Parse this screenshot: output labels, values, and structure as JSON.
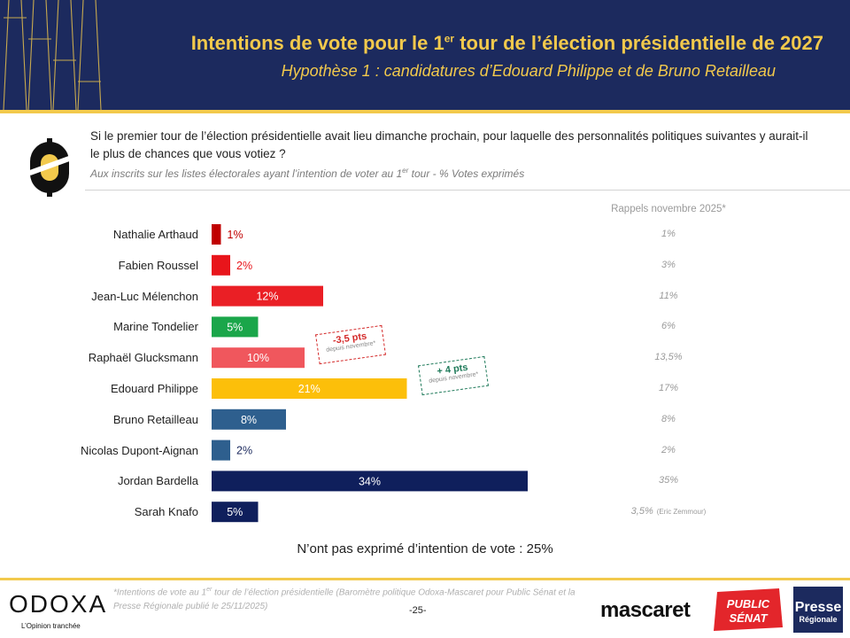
{
  "header": {
    "title_pre": "Intentions de vote pour le 1",
    "title_sup": "er",
    "title_post": " tour de l’élection présidentielle de 2027",
    "subtitle": "Hypothèse 1 : candidatures d’Edouard Philippe et de Bruno Retailleau"
  },
  "question": {
    "text": "Si le premier tour de l’élection présidentielle avait lieu dimanche prochain, pour laquelle des personnalités politiques suivantes y aurait-il le plus de chances que vous votiez ?",
    "note_pre": "Aux inscrits sur les listes électorales ayant l’intention de voter au 1",
    "note_sup": "er",
    "note_post": " tour  - % Votes exprimés"
  },
  "recall_header": "Rappels novembre 2025*",
  "chart_data": {
    "type": "bar",
    "orientation": "horizontal",
    "categories": [
      "Nathalie Arthaud",
      "Fabien Roussel",
      "Jean-Luc Mélenchon",
      "Marine Tondelier",
      "Raphaël Glucksmann",
      "Edouard Philippe",
      "Bruno Retailleau",
      "Nicolas Dupont-Aignan",
      "Jordan Bardella",
      "Sarah Knafo"
    ],
    "values": [
      1,
      2,
      12,
      5,
      10,
      21,
      8,
      2,
      34,
      5
    ],
    "labels": [
      "1%",
      "2%",
      "12%",
      "5%",
      "10%",
      "21%",
      "8%",
      "2%",
      "34%",
      "5%"
    ],
    "colors": [
      "#c00000",
      "#e8151b",
      "#ea1f25",
      "#1aa64a",
      "#f0575d",
      "#fcbf0a",
      "#2e5f8e",
      "#2e5f8e",
      "#0f1f5c",
      "#0f1f5c"
    ],
    "recall_values": [
      "1%",
      "3%",
      "11%",
      "6%",
      "13,5%",
      "17%",
      "8%",
      "2%",
      "35%",
      "3,5%"
    ],
    "recall_notes": [
      "",
      "",
      "",
      "",
      "",
      "",
      "",
      "",
      "",
      "(Eric Zemmour)"
    ],
    "annotations": [
      {
        "category": "Raphaël Glucksmann",
        "text": "-3,5 pts",
        "sub": "depuis novembre*",
        "color": "#d42a2a"
      },
      {
        "category": "Edouard Philippe",
        "text": "+ 4 pts",
        "sub": "depuis novembre*",
        "color": "#1f7a5a"
      }
    ],
    "xlim": [
      0,
      34
    ]
  },
  "no_vote": "N’ont pas exprimé d’intention de vote : 25%",
  "footer": {
    "note_pre": "*Intentions de vote au 1",
    "note_sup": "er",
    "note_post": " tour de l’élection présidentielle (Baromètre politique Odoxa-Mascaret pour Public Sénat et la Presse Régionale publié le 25/11/2025)",
    "page": "-25-",
    "odoxa_brand": "ODOXA",
    "odoxa_tagline": "L’Opinion tranchée",
    "mascaret": "mascaret",
    "public_senat_1": "PUBLIC",
    "public_senat_2": "SÉNAT",
    "presse_1": "Presse",
    "presse_2": "Régionale"
  },
  "theme": {
    "navy": "#1c2a5e",
    "gold": "#f2c94c"
  }
}
